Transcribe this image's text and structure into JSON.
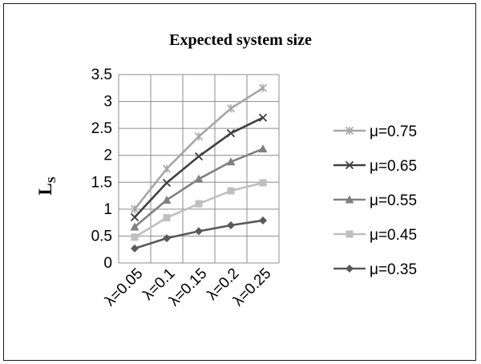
{
  "chart_data": {
    "type": "line",
    "title": "Expected system size",
    "xlabel": "",
    "ylabel": "L",
    "ylabel_subscript": "S",
    "categories": [
      "λ=0.05",
      "λ=0.1",
      "λ=0.15",
      "λ=0.2",
      "λ=0.25"
    ],
    "ylim": [
      0,
      3.5
    ],
    "yticks": [
      "0",
      "0.5",
      "1",
      "1.5",
      "2",
      "2.5",
      "3",
      "3.5"
    ],
    "grid": true,
    "legend_position": "right",
    "series": [
      {
        "name": "μ=0.75",
        "marker": "star",
        "color": "#a6a6a6",
        "values": [
          1.0,
          1.75,
          2.35,
          2.87,
          3.25
        ]
      },
      {
        "name": "μ=0.65",
        "marker": "x",
        "color": "#404040",
        "values": [
          0.85,
          1.49,
          1.98,
          2.41,
          2.7
        ]
      },
      {
        "name": "μ=0.55",
        "marker": "triangle",
        "color": "#808080",
        "values": [
          0.67,
          1.17,
          1.56,
          1.88,
          2.12
        ]
      },
      {
        "name": "μ=0.45",
        "marker": "square",
        "color": "#bfbfbf",
        "values": [
          0.48,
          0.84,
          1.1,
          1.34,
          1.49
        ]
      },
      {
        "name": "μ=0.35",
        "marker": "diamond",
        "color": "#595959",
        "values": [
          0.27,
          0.46,
          0.59,
          0.7,
          0.79
        ]
      }
    ]
  }
}
